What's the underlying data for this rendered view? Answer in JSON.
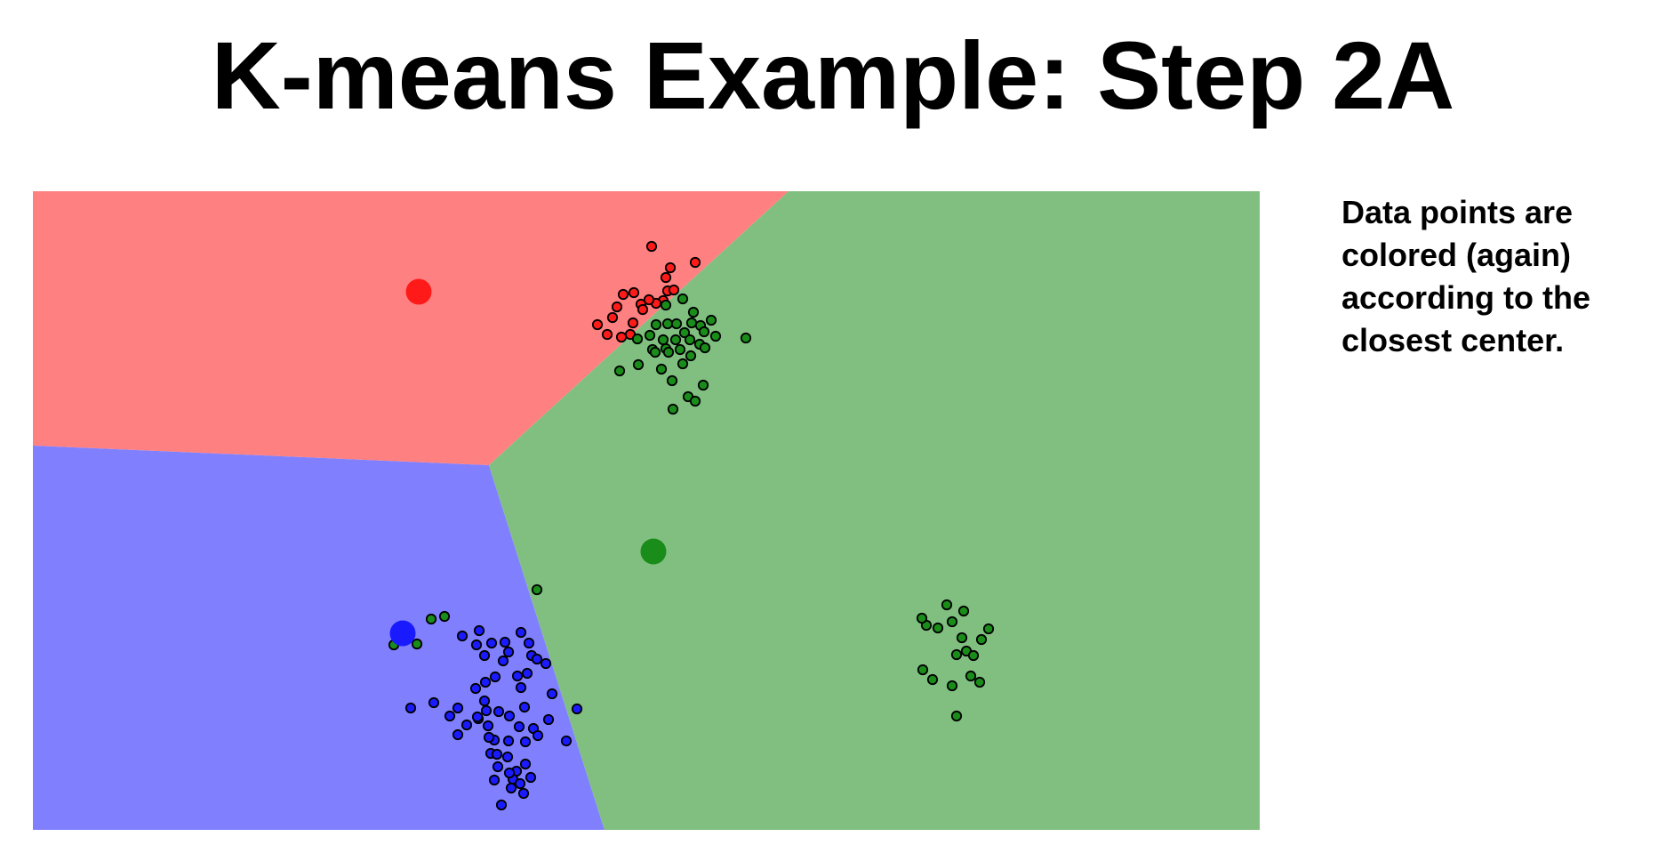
{
  "slide": {
    "title": "K-means Example: Step 2A"
  },
  "note": {
    "lines": [
      "Data points are",
      "colored (again)",
      "according to the",
      "closest center."
    ]
  },
  "chart_data": {
    "type": "scatter",
    "xlim": [
      0,
      1380
    ],
    "ylim": [
      0,
      718
    ],
    "grid": false,
    "region_colors": {
      "red": "#ff8080",
      "blue": "#8080ff",
      "green": "#80bf80"
    },
    "point_colors": {
      "red": "#ff1a1a",
      "blue": "#1a1aff",
      "green": "#1a8c1a"
    },
    "regions": [
      {
        "name": "red",
        "polygon": [
          [
            0,
            0
          ],
          [
            850,
            0
          ],
          [
            513,
            308
          ],
          [
            0,
            286
          ]
        ]
      },
      {
        "name": "blue",
        "polygon": [
          [
            0,
            286
          ],
          [
            513,
            308
          ],
          [
            643,
            718
          ],
          [
            0,
            718
          ]
        ]
      },
      {
        "name": "green",
        "polygon": [
          [
            850,
            0
          ],
          [
            1380,
            0
          ],
          [
            1380,
            718
          ],
          [
            643,
            718
          ],
          [
            513,
            308
          ]
        ]
      }
    ],
    "centers": [
      {
        "cluster": "red",
        "x": 434,
        "y": 113
      },
      {
        "cluster": "blue",
        "x": 416,
        "y": 497
      },
      {
        "cluster": "green",
        "x": 698,
        "y": 405
      }
    ],
    "points": {
      "red": [
        [
          696,
          62
        ],
        [
          717,
          86
        ],
        [
          745,
          80
        ],
        [
          712,
          97
        ],
        [
          714,
          112
        ],
        [
          721,
          111
        ],
        [
          709,
          123
        ],
        [
          701,
          126
        ],
        [
          693,
          122
        ],
        [
          684,
          127
        ],
        [
          664,
          116
        ],
        [
          676,
          114
        ],
        [
          657,
          130
        ],
        [
          686,
          133
        ],
        [
          675,
          148
        ],
        [
          652,
          142
        ],
        [
          635,
          150
        ],
        [
          646,
          161
        ],
        [
          662,
          164
        ],
        [
          672,
          161
        ]
      ],
      "green": [
        [
          712,
          128
        ],
        [
          731,
          121
        ],
        [
          743,
          136
        ],
        [
          701,
          150
        ],
        [
          714,
          149
        ],
        [
          724,
          149
        ],
        [
          741,
          148
        ],
        [
          751,
          151
        ],
        [
          763,
          145
        ],
        [
          768,
          163
        ],
        [
          755,
          158
        ],
        [
          733,
          159
        ],
        [
          739,
          167
        ],
        [
          750,
          172
        ],
        [
          723,
          167
        ],
        [
          709,
          167
        ],
        [
          694,
          162
        ],
        [
          680,
          166
        ],
        [
          697,
          178
        ],
        [
          712,
          177
        ],
        [
          728,
          178
        ],
        [
          740,
          185
        ],
        [
          756,
          176
        ],
        [
          731,
          194
        ],
        [
          715,
          181
        ],
        [
          700,
          181
        ],
        [
          681,
          195
        ],
        [
          707,
          200
        ],
        [
          660,
          202
        ],
        [
          719,
          213
        ],
        [
          737,
          231
        ],
        [
          754,
          218
        ],
        [
          745,
          236
        ],
        [
          720,
          245
        ],
        [
          802,
          165
        ],
        [
          567,
          448
        ],
        [
          463,
          478
        ],
        [
          448,
          481
        ],
        [
          432,
          509
        ],
        [
          406,
          510
        ],
        [
          1047,
          472
        ],
        [
          1028,
          465
        ],
        [
          1034,
          484
        ],
        [
          1018,
          491
        ],
        [
          1005,
          488
        ],
        [
          1000,
          480
        ],
        [
          1045,
          502
        ],
        [
          1067,
          504
        ],
        [
          1075,
          492
        ],
        [
          1050,
          517
        ],
        [
          1039,
          521
        ],
        [
          1058,
          522
        ],
        [
          1055,
          545
        ],
        [
          1065,
          552
        ],
        [
          1034,
          556
        ],
        [
          1012,
          549
        ],
        [
          1001,
          538
        ],
        [
          1039,
          590
        ]
      ],
      "blue": [
        [
          483,
          500
        ],
        [
          502,
          494
        ],
        [
          499,
          510
        ],
        [
          508,
          522
        ],
        [
          516,
          508
        ],
        [
          531,
          507
        ],
        [
          535,
          518
        ],
        [
          549,
          496
        ],
        [
          558,
          508
        ],
        [
          561,
          522
        ],
        [
          556,
          542
        ],
        [
          549,
          558
        ],
        [
          553,
          580
        ],
        [
          563,
          604
        ],
        [
          554,
          619
        ],
        [
          568,
          612
        ],
        [
          580,
          594
        ],
        [
          584,
          565
        ],
        [
          577,
          531
        ],
        [
          567,
          526
        ],
        [
          545,
          545
        ],
        [
          529,
          528
        ],
        [
          520,
          546
        ],
        [
          509,
          552
        ],
        [
          498,
          559
        ],
        [
          508,
          573
        ],
        [
          501,
          593
        ],
        [
          512,
          601
        ],
        [
          519,
          617
        ],
        [
          535,
          618
        ],
        [
          547,
          602
        ],
        [
          536,
          590
        ],
        [
          524,
          585
        ],
        [
          510,
          584
        ],
        [
          488,
          600
        ],
        [
          478,
          581
        ],
        [
          469,
          590
        ],
        [
          451,
          575
        ],
        [
          425,
          581
        ],
        [
          515,
          632
        ],
        [
          523,
          647
        ],
        [
          519,
          662
        ],
        [
          544,
          652
        ],
        [
          540,
          661
        ],
        [
          554,
          644
        ],
        [
          560,
          659
        ],
        [
          600,
          618
        ],
        [
          612,
          582
        ],
        [
          478,
          611
        ],
        [
          500,
          591
        ],
        [
          513,
          614
        ],
        [
          522,
          633
        ],
        [
          534,
          636
        ],
        [
          536,
          654
        ],
        [
          548,
          666
        ],
        [
          552,
          677
        ],
        [
          527,
          690
        ],
        [
          538,
          671
        ]
      ]
    }
  }
}
